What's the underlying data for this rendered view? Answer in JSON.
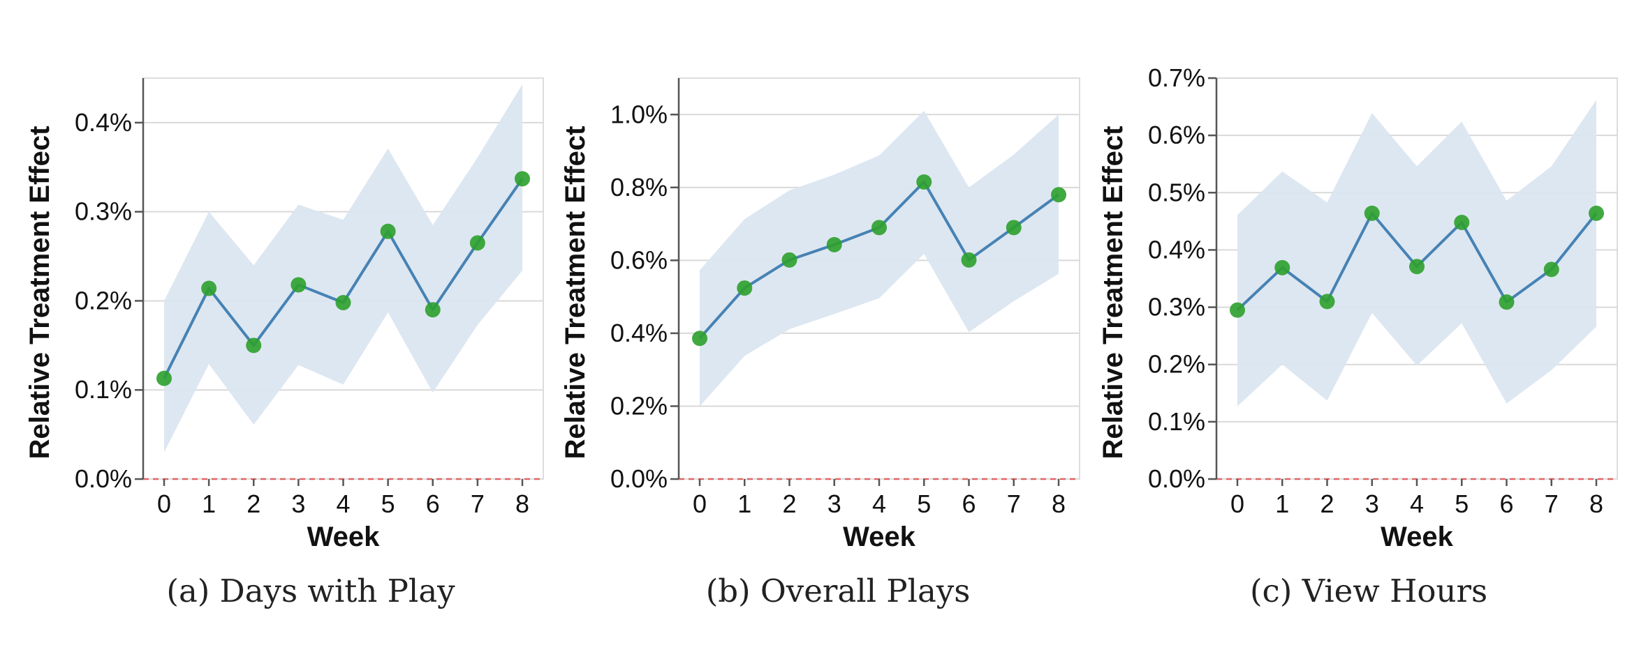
{
  "figure": {
    "captions": [
      "(a) Days with Play",
      "(b) Overall Plays",
      "(c) View Hours"
    ]
  },
  "colors": {
    "line": "#4682b4",
    "point": "#2ca02c",
    "band": "#dbe6f0",
    "grid": "#d9d9d9",
    "zero_line": "#e06666",
    "axis": "#555555"
  },
  "chart_data": [
    {
      "type": "line",
      "xlabel": "Week",
      "ylabel": "Relative Treatment Effect",
      "x": [
        0,
        1,
        2,
        3,
        4,
        5,
        6,
        7,
        8
      ],
      "ylim": [
        0,
        0.45
      ],
      "yticks": [
        0.0,
        0.1,
        0.2,
        0.3,
        0.4
      ],
      "ytick_labels": [
        "0.0%",
        "0.1%",
        "0.2%",
        "0.3%",
        "0.4%"
      ],
      "y": [
        0.113,
        0.214,
        0.15,
        0.218,
        0.198,
        0.278,
        0.19,
        0.265,
        0.337
      ],
      "ci_upper": [
        0.2,
        0.3,
        0.24,
        0.308,
        0.291,
        0.371,
        0.285,
        0.361,
        0.443
      ],
      "ci_lower": [
        0.03,
        0.129,
        0.061,
        0.128,
        0.106,
        0.187,
        0.097,
        0.173,
        0.234
      ],
      "reference_line": 0,
      "grid": "horizontal"
    },
    {
      "type": "line",
      "xlabel": "Week",
      "ylabel": "Relative Treatment Effect",
      "x": [
        0,
        1,
        2,
        3,
        4,
        5,
        6,
        7,
        8
      ],
      "ylim": [
        0,
        1.1
      ],
      "yticks": [
        0.0,
        0.2,
        0.4,
        0.6,
        0.8,
        1.0
      ],
      "ytick_labels": [
        "0.0%",
        "0.2%",
        "0.4%",
        "0.6%",
        "0.8%",
        "1.0%"
      ],
      "y": [
        0.386,
        0.524,
        0.601,
        0.643,
        0.69,
        0.815,
        0.601,
        0.69,
        0.78
      ],
      "ci_upper": [
        0.573,
        0.713,
        0.792,
        0.835,
        0.888,
        1.01,
        0.8,
        0.89,
        1.0
      ],
      "ci_lower": [
        0.199,
        0.338,
        0.411,
        0.453,
        0.496,
        0.618,
        0.403,
        0.488,
        0.563
      ],
      "reference_line": 0,
      "grid": "horizontal"
    },
    {
      "type": "line",
      "xlabel": "Week",
      "ylabel": "Relative Treatment Effect",
      "x": [
        0,
        1,
        2,
        3,
        4,
        5,
        6,
        7,
        8
      ],
      "ylim": [
        0,
        0.7
      ],
      "yticks": [
        0.0,
        0.1,
        0.2,
        0.3,
        0.4,
        0.5,
        0.6,
        0.7
      ],
      "ytick_labels": [
        "0.0%",
        "0.1%",
        "0.2%",
        "0.3%",
        "0.4%",
        "0.5%",
        "0.6%",
        "0.7%"
      ],
      "y": [
        0.295,
        0.369,
        0.31,
        0.464,
        0.371,
        0.448,
        0.309,
        0.366,
        0.464
      ],
      "ci_upper": [
        0.461,
        0.537,
        0.483,
        0.639,
        0.546,
        0.624,
        0.486,
        0.546,
        0.662
      ],
      "ci_lower": [
        0.127,
        0.2,
        0.137,
        0.29,
        0.198,
        0.272,
        0.132,
        0.19,
        0.266
      ],
      "reference_line": 0,
      "grid": "horizontal"
    }
  ]
}
